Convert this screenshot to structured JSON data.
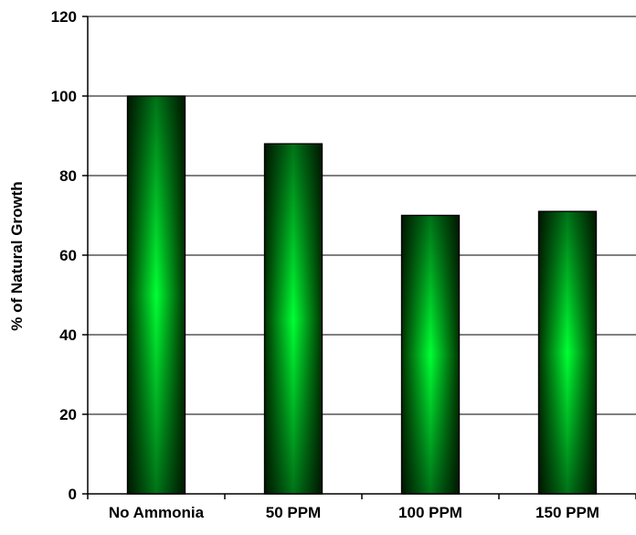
{
  "chart_data": {
    "type": "bar",
    "categories": [
      "No Ammonia",
      "50 PPM",
      "100 PPM",
      "150 PPM"
    ],
    "values": [
      100,
      88,
      70,
      71
    ],
    "ylabel": "% of Natural Growth",
    "xlabel": "",
    "ylim": [
      0,
      120
    ],
    "yticks": [
      0,
      20,
      40,
      60,
      80,
      100,
      120
    ],
    "grid": true,
    "bar_colors": {
      "edge": "#003300",
      "center": "#00ff33"
    }
  }
}
